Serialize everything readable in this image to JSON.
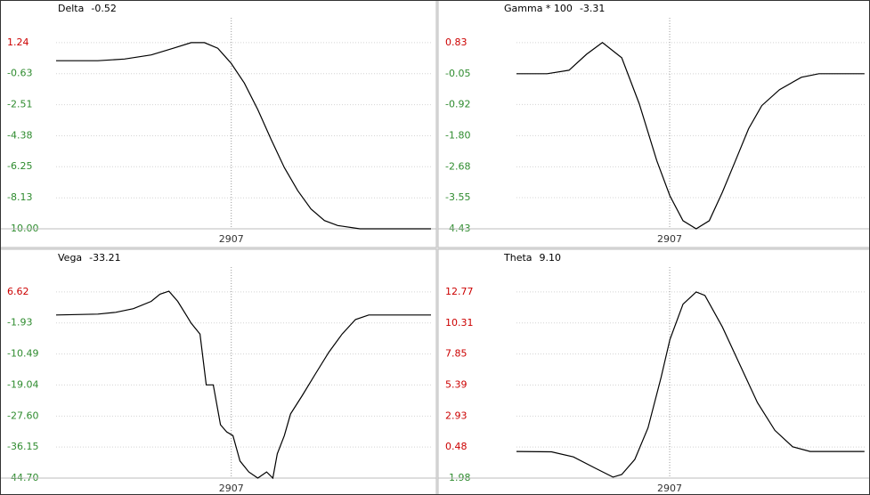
{
  "chart_data": [
    {
      "type": "line",
      "title": "Delta",
      "annotation": "-0.52",
      "color": "#000000",
      "grid": true,
      "tick_label_colors": {
        "positive": "#cc0000",
        "negative": "#2e8b2e"
      },
      "xlim": [
        2800,
        3029
      ],
      "xticks": [
        2907
      ],
      "ylim": [
        -10,
        2.74
      ],
      "yticks": [
        1.24,
        -0.63,
        -2.51,
        -4.38,
        -6.25,
        -8.13,
        {
          "value": -10,
          "label": "-10.00"
        }
      ],
      "x": [
        2800,
        2825.5,
        2841.8,
        2858.1,
        2871.6,
        2882.5,
        2890.6,
        2898.8,
        2906.9,
        2915,
        2923.2,
        2931.3,
        2939.4,
        2947.6,
        2955.7,
        2963.9,
        2972,
        2985.6,
        3029
      ],
      "values": [
        0.15,
        0.15,
        0.25,
        0.5,
        0.9,
        1.24,
        1.24,
        0.9,
        0,
        -1.2,
        -2.8,
        -4.6,
        -6.3,
        -7.7,
        -8.8,
        -9.5,
        -9.8,
        -10,
        -10
      ]
    },
    {
      "type": "line",
      "title": "Gamma * 100",
      "annotation": "-3.31",
      "color": "#000000",
      "grid": true,
      "tick_label_colors": {
        "positive": "#cc0000",
        "negative": "#2e8b2e"
      },
      "xlim": [
        2830,
        3005
      ],
      "xticks": [
        2907
      ],
      "ylim": [
        -4.43,
        1.53
      ],
      "yticks": [
        0.83,
        -0.05,
        -0.92,
        {
          "value": -1.8,
          "label": "-1.80"
        },
        -2.68,
        -3.55,
        -4.43
      ],
      "x": [
        2830,
        2845.4,
        2856.4,
        2865.2,
        2873.2,
        2882.9,
        2891.7,
        2900.5,
        2907.1,
        2913.7,
        2920.3,
        2926.9,
        2933.5,
        2940.1,
        2946.7,
        2953.3,
        2962.2,
        2973.2,
        2982,
        3004.9
      ],
      "values": [
        -0.05,
        -0.05,
        0.05,
        0.5,
        0.83,
        0.4,
        -0.9,
        -2.5,
        -3.5,
        -4.2,
        -4.43,
        -4.2,
        -3.4,
        -2.5,
        -1.6,
        -0.95,
        -0.5,
        -0.15,
        -0.05,
        -0.05
      ]
    },
    {
      "type": "line",
      "title": "Vega",
      "annotation": "-33.21",
      "color": "#000000",
      "grid": true,
      "tick_label_colors": {
        "positive": "#cc0000",
        "negative": "#2e8b2e"
      },
      "xlim": [
        2800,
        3029
      ],
      "xticks": [
        2907
      ],
      "ylim": [
        -44.7,
        13.46
      ],
      "yticks": [
        6.62,
        -1.93,
        -10.49,
        -19.04,
        {
          "value": -27.6,
          "label": "-27.60"
        },
        -36.15,
        {
          "value": -44.7,
          "label": "-44.70"
        }
      ],
      "x": [
        2800,
        2825.5,
        2836.4,
        2847.2,
        2858.1,
        2863.5,
        2868.9,
        2874.3,
        2879.8,
        2882.5,
        2887.9,
        2891.7,
        2896,
        2900.4,
        2904.2,
        2908,
        2912.3,
        2917.7,
        2923.2,
        2928.6,
        2932.4,
        2935.1,
        2939.4,
        2943.2,
        2950.3,
        2958.4,
        2966.6,
        2974.7,
        2982.9,
        2991,
        2999.1,
        3029
      ],
      "values": [
        0.26,
        0.5,
        1,
        2,
        4,
        6,
        6.8,
        4,
        0,
        -2,
        -5,
        -19,
        -19,
        -30,
        -32,
        -33,
        -40,
        -43,
        -44.7,
        -43,
        -44.7,
        -38,
        -33,
        -27,
        -22,
        -16,
        -10,
        -5,
        -1,
        0.26,
        0.26,
        0.26
      ]
    },
    {
      "type": "line",
      "title": "Theta",
      "annotation": "9.10",
      "color": "#000000",
      "grid": true,
      "tick_label_colors": {
        "positive": "#cc0000",
        "negative": "#2e8b2e"
      },
      "xlim": [
        2830,
        3005
      ],
      "xticks": [
        2907
      ],
      "ylim": [
        -1.98,
        14.74
      ],
      "yticks": [
        12.77,
        10.31,
        7.85,
        5.39,
        2.93,
        0.48,
        -1.98
      ],
      "x": [
        2830,
        2847.6,
        2858.6,
        2869.6,
        2878.5,
        2882.9,
        2889.5,
        2896.1,
        2902.7,
        2907.1,
        2913.7,
        2920.3,
        2924.7,
        2933.5,
        2942.3,
        2951.1,
        2959.9,
        2968.8,
        2977.6,
        3004.9
      ],
      "values": [
        0.13,
        0.1,
        -0.3,
        -1.2,
        -1.9,
        -1.7,
        -0.5,
        2,
        6,
        9,
        11.8,
        12.77,
        12.5,
        10,
        7,
        4,
        1.8,
        0.5,
        0.13,
        0.13
      ]
    }
  ]
}
